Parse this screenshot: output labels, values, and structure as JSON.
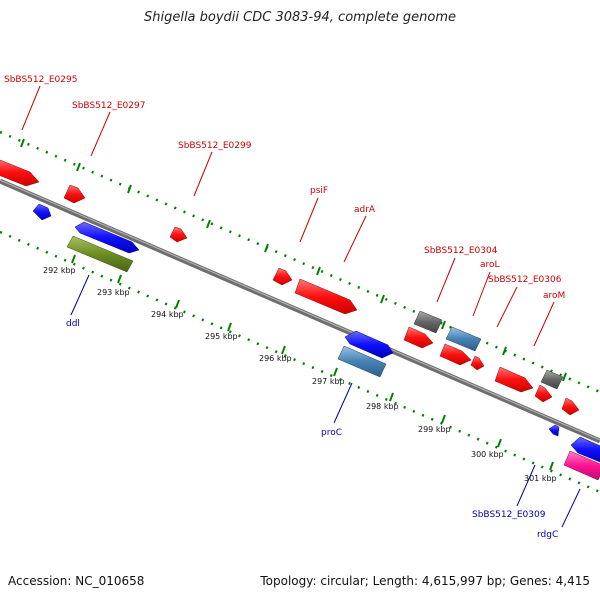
{
  "title": "Shigella boydii CDC 3083-94, complete genome",
  "footer": {
    "accession": "Accession: NC_010658",
    "topology": "Topology: circular; Length: 4,615,997 bp; Genes: 4,415"
  },
  "colors": {
    "forward_gene": "#ff0000",
    "reverse_gene": "#0000ff",
    "pseudo_gene": "#4682b4",
    "rna_gene": "#6b8e23",
    "misc_gene": "#666666",
    "special_gene": "#ff1493",
    "backbone": "#808080",
    "dots": "#008000",
    "label_forward": "#cc0000",
    "label_reverse": "#0000aa"
  },
  "tick_labels": [
    "292 kbp",
    "293 kbp",
    "294 kbp",
    "295 kbp",
    "296 kbp",
    "297 kbp",
    "298 kbp",
    "299 kbp",
    "300 kbp",
    "301 kbp"
  ],
  "labels_top": [
    "SbBS512_E0295",
    "SbBS512_E0297",
    "SbBS512_E0299",
    "psiF",
    "adrA",
    "SbBS512_E0304",
    "aroL",
    "SbBS512_E0306",
    "aroM"
  ],
  "labels_bottom": [
    "ddl",
    "proC",
    "SbBS512_E0309",
    "rdgC"
  ]
}
